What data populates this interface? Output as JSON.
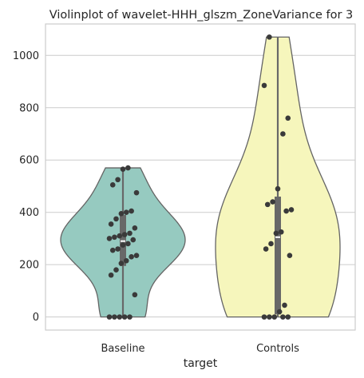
{
  "chart_data": {
    "type": "violin",
    "title": "Violinplot of wavelet-HHH_glszm_ZoneVariance for 3",
    "xlabel": "target",
    "ylabel": "",
    "categories": [
      "Baseline",
      "Controls"
    ],
    "ylim": [
      -50,
      1120
    ],
    "yticks": [
      0,
      200,
      400,
      600,
      800,
      1000
    ],
    "grid": true,
    "colors": {
      "Baseline": "#96cac0",
      "Controls": "#f6f6bc",
      "points": "#3a3a3a",
      "outline": "#646464"
    },
    "series": [
      {
        "category": "Baseline",
        "min": 0,
        "q1": 195,
        "median": 290,
        "q3": 390,
        "max": 570,
        "points": [
          0,
          0,
          0,
          0,
          0,
          85,
          160,
          180,
          205,
          215,
          230,
          235,
          255,
          260,
          275,
          280,
          295,
          300,
          305,
          310,
          315,
          320,
          340,
          355,
          375,
          395,
          400,
          405,
          475,
          505,
          525,
          565,
          570
        ]
      },
      {
        "category": "Controls",
        "min": 0,
        "q1": 10,
        "median": 305,
        "q3": 460,
        "max": 1070,
        "points": [
          0,
          0,
          0,
          0,
          0,
          20,
          45,
          235,
          260,
          280,
          320,
          325,
          405,
          410,
          430,
          440,
          490,
          700,
          760,
          885,
          1070
        ]
      }
    ]
  }
}
